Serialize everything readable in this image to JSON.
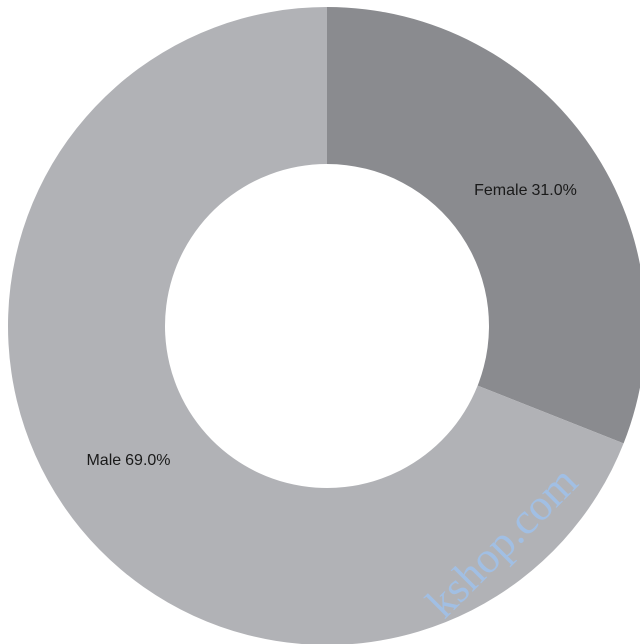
{
  "chart_data": {
    "type": "donut",
    "categories": [
      "Female",
      "Male"
    ],
    "values": [
      31.0,
      69.0
    ],
    "value_labels": [
      "31.0%",
      "69.0%"
    ],
    "colors": [
      "#8a8b8f",
      "#b1b2b6"
    ],
    "watermark": "kshop.com"
  }
}
